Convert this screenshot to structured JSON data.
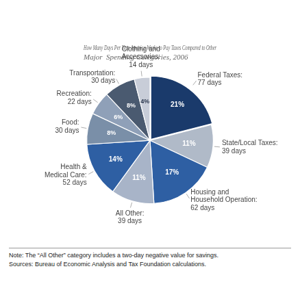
{
  "chart_data": {
    "type": "pie",
    "title": [
      "How Many Days Per Year America Works to Pay Taxes Compared to Other",
      "Major  Spending Categories, 2006"
    ],
    "categories": [
      "Federal Taxes:\n77 days",
      "State/Local Taxes:\n39 days",
      "Housing and\nHousehold Operation:\n62 days",
      "All Other:\n39 days",
      "Health &\nMedical Care:\n52 days",
      "Food:\n30 days",
      "Recreation:\n22 days",
      "Transportation:\n30 days",
      "Clothing and\nAccessories:\n14 days"
    ],
    "values": [
      21,
      11,
      17,
      11,
      14,
      8,
      6,
      8,
      4
    ],
    "value_labels": [
      "21%",
      "11%",
      "17%",
      "11%",
      "14%",
      "8%",
      "6%",
      "8%",
      "4%"
    ],
    "data_labels": true,
    "colors": [
      "#1a3a6b",
      "#b0bac8",
      "#2e5fa3",
      "#a8b4c8",
      "#2e5fa3",
      "#7a8fa8",
      "#8fa0b8",
      "#4a5a70",
      "#c8cdd8"
    ],
    "annotations": [
      "Note: The “All Other” category includes a two-day negative value for savings.",
      "Sources: Bureau of Economic Analysis and Tax Foundation calculations."
    ]
  }
}
